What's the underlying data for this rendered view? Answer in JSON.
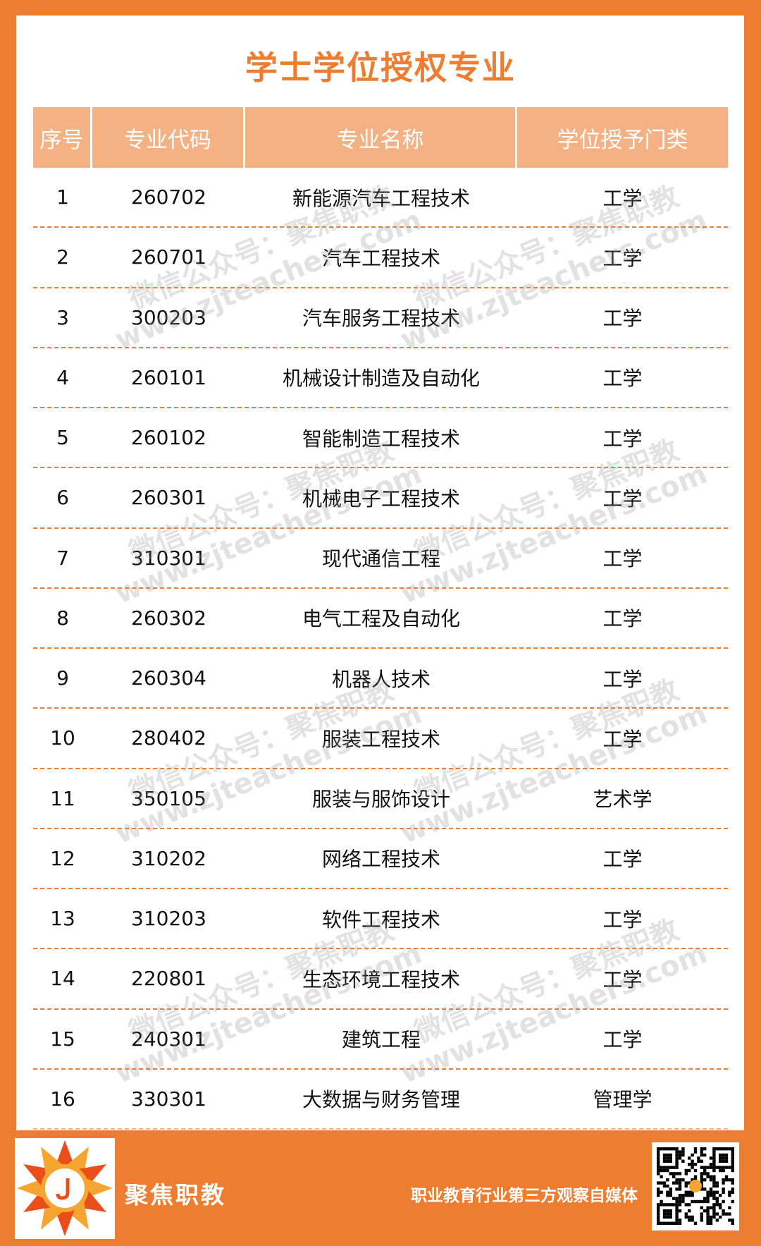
{
  "title": "学士学位授权专业",
  "table": {
    "headers": [
      "序号",
      "专业代码",
      "专业名称",
      "学位授予门类"
    ],
    "rows": [
      [
        "1",
        "260702",
        "新能源汽车工程技术",
        "工学"
      ],
      [
        "2",
        "260701",
        "汽车工程技术",
        "工学"
      ],
      [
        "3",
        "300203",
        "汽车服务工程技术",
        "工学"
      ],
      [
        "4",
        "260101",
        "机械设计制造及自动化",
        "工学"
      ],
      [
        "5",
        "260102",
        "智能制造工程技术",
        "工学"
      ],
      [
        "6",
        "260301",
        "机械电子工程技术",
        "工学"
      ],
      [
        "7",
        "310301",
        "现代通信工程",
        "工学"
      ],
      [
        "8",
        "260302",
        "电气工程及自动化",
        "工学"
      ],
      [
        "9",
        "260304",
        "机器人技术",
        "工学"
      ],
      [
        "10",
        "280402",
        "服装工程技术",
        "工学"
      ],
      [
        "11",
        "350105",
        "服装与服饰设计",
        "艺术学"
      ],
      [
        "12",
        "310202",
        "网络工程技术",
        "工学"
      ],
      [
        "13",
        "310203",
        "软件工程技术",
        "工学"
      ],
      [
        "14",
        "220801",
        "生态环境工程技术",
        "工学"
      ],
      [
        "15",
        "240301",
        "建筑工程",
        "工学"
      ],
      [
        "16",
        "330301",
        "大数据与财务管理",
        "管理学"
      ]
    ]
  },
  "watermark": {
    "line1": "微信公众号：聚焦职教",
    "line2": "www.zjteachers.com"
  },
  "footer": {
    "brand": "聚焦职教",
    "slogan": "职业教育行业第三方观察自媒体",
    "logo_letter": "J"
  },
  "colors": {
    "accent": "#ED7D31",
    "header_bg": "#F4B183"
  }
}
